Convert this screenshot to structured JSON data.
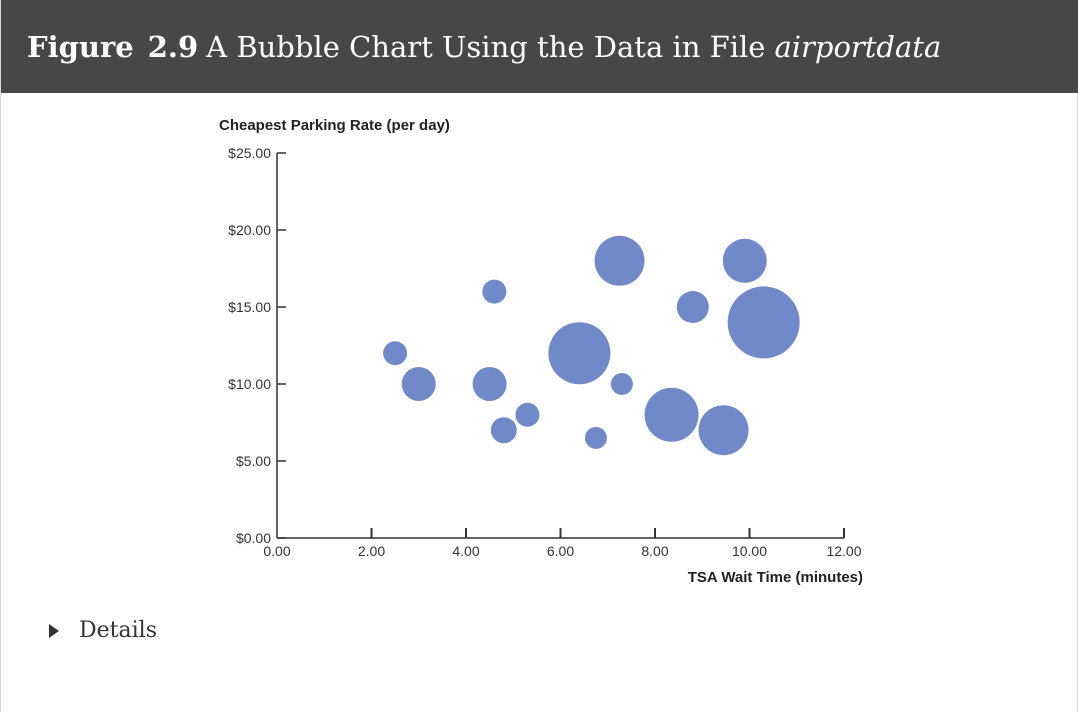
{
  "figure": {
    "label": "Figure",
    "number": "2.9",
    "title": "A Bubble Chart Using the Data in File",
    "title_italic": "airportdata"
  },
  "details": {
    "label": "Details",
    "icon": "caret-right-icon"
  },
  "chart_data": {
    "type": "scatter",
    "subtype": "bubble",
    "title": "",
    "xlabel": "TSA Wait Time (minutes)",
    "ylabel": "Cheapest Parking Rate (per day)",
    "xlim": [
      0,
      12
    ],
    "ylim": [
      0,
      25
    ],
    "x_ticks": [
      0,
      2,
      4,
      6,
      8,
      10,
      12
    ],
    "x_tick_labels": [
      "0.00",
      "2.00",
      "4.00",
      "6.00",
      "8.00",
      "10.00",
      "12.00"
    ],
    "y_ticks": [
      0,
      5,
      10,
      15,
      20,
      25
    ],
    "y_tick_labels": [
      "$0.00",
      "$5.00",
      "$10.00",
      "$15.00",
      "$20.00",
      "$25.00"
    ],
    "grid": false,
    "legend": "none",
    "bubble_color": "#7189c9",
    "series": [
      {
        "points": [
          {
            "x": 2.5,
            "y": 12,
            "size": 12
          },
          {
            "x": 3.0,
            "y": 10,
            "size": 17
          },
          {
            "x": 4.5,
            "y": 10,
            "size": 17
          },
          {
            "x": 4.6,
            "y": 16,
            "size": 12
          },
          {
            "x": 4.8,
            "y": 7,
            "size": 13
          },
          {
            "x": 5.3,
            "y": 8,
            "size": 12
          },
          {
            "x": 6.4,
            "y": 12,
            "size": 31
          },
          {
            "x": 6.75,
            "y": 6.5,
            "size": 11
          },
          {
            "x": 7.25,
            "y": 18,
            "size": 25
          },
          {
            "x": 7.3,
            "y": 10,
            "size": 11
          },
          {
            "x": 8.35,
            "y": 8,
            "size": 27
          },
          {
            "x": 8.8,
            "y": 15,
            "size": 16
          },
          {
            "x": 9.45,
            "y": 7,
            "size": 25
          },
          {
            "x": 9.9,
            "y": 18,
            "size": 22
          },
          {
            "x": 10.3,
            "y": 14,
            "size": 36
          }
        ]
      }
    ]
  }
}
